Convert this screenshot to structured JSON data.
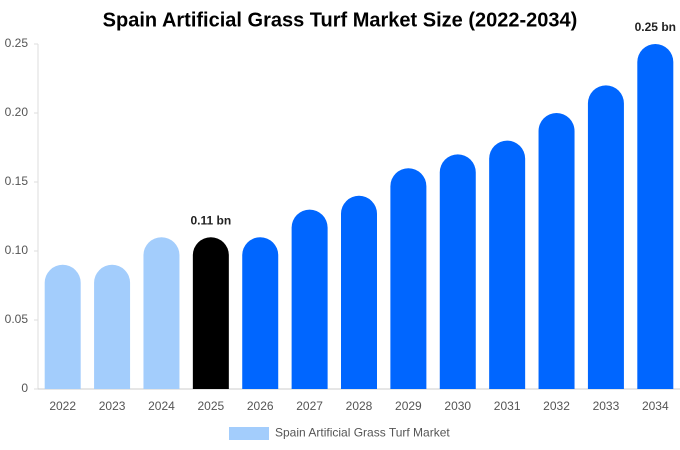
{
  "chart_data": {
    "type": "bar",
    "title": "Spain Artificial Grass Turf Market Size (2022-2034)",
    "categories": [
      "2022",
      "2023",
      "2024",
      "2025",
      "2026",
      "2027",
      "2028",
      "2029",
      "2030",
      "2031",
      "2032",
      "2033",
      "2034"
    ],
    "series": [
      {
        "name": "Spain Artificial Grass Turf Market",
        "color": "#a3cdfc",
        "values": [
          0.09,
          0.09,
          0.11,
          0.11,
          0.11,
          0.13,
          0.14,
          0.16,
          0.17,
          0.18,
          0.2,
          0.22,
          0.25
        ],
        "value_labels": [
          null,
          null,
          null,
          "0.11 bn",
          null,
          null,
          null,
          null,
          null,
          null,
          null,
          null,
          "0.25 bn"
        ],
        "bar_colors": [
          "#a3cdfc",
          "#a3cdfc",
          "#a3cdfc",
          "#000000",
          "#0066ff",
          "#0066ff",
          "#0066ff",
          "#0066ff",
          "#0066ff",
          "#0066ff",
          "#0066ff",
          "#0066ff",
          "#0066ff"
        ]
      }
    ],
    "ylim": [
      0,
      0.25
    ],
    "yticks": [
      0,
      0.05,
      {
        "value": 0.1,
        "label": "0.10"
      },
      0.15,
      {
        "value": 0.2,
        "label": "0.20"
      },
      0.25
    ],
    "grid": false,
    "legend": "bottom"
  }
}
